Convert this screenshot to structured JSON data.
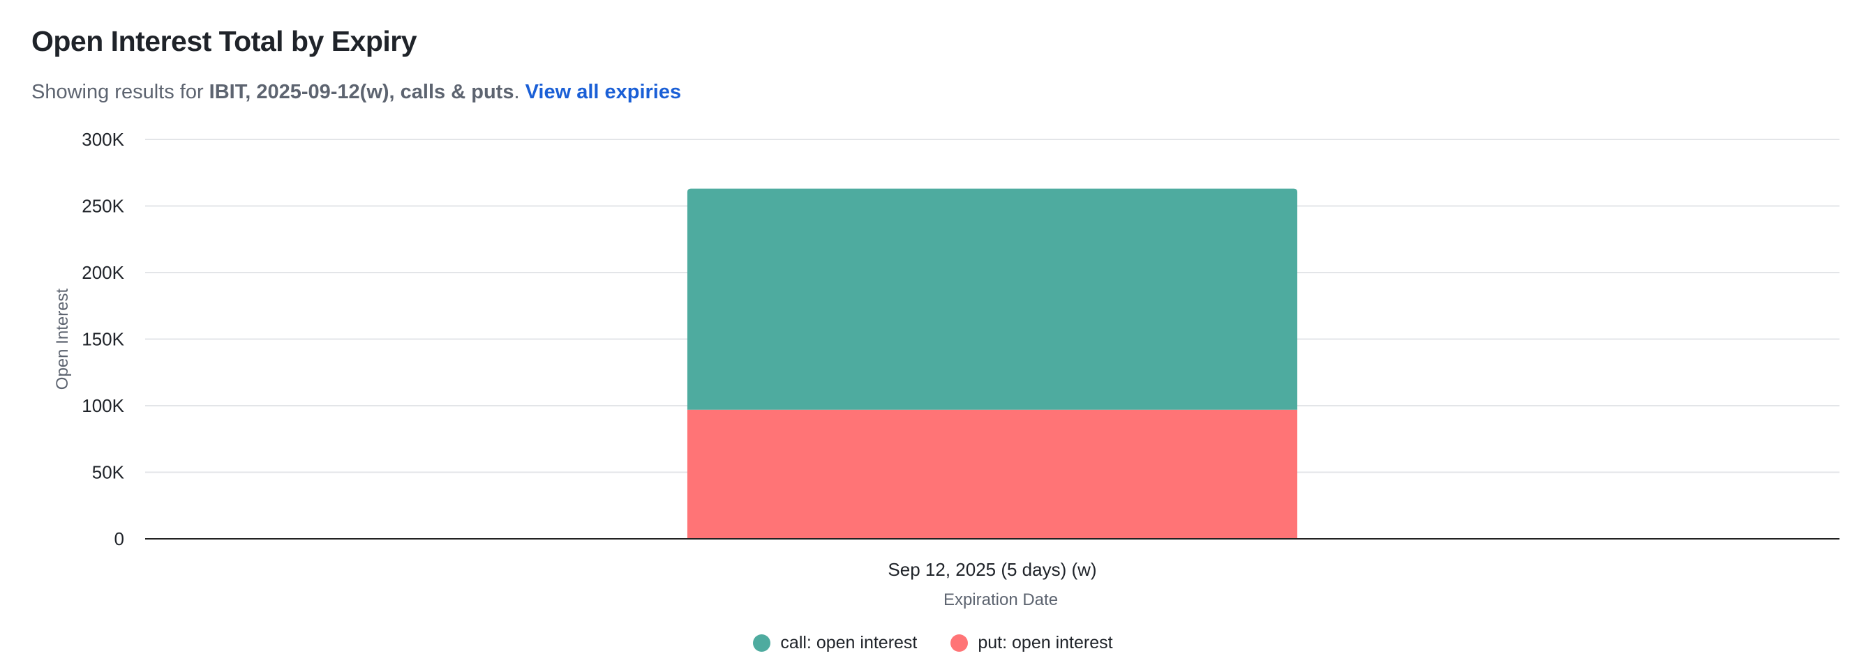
{
  "header": {
    "title": "Open Interest Total by Expiry",
    "subtitle_prefix": "Showing results for ",
    "subtitle_strong": "IBIT, 2025-09-12(w), calls & puts",
    "subtitle_sep": ". ",
    "link_label": "View all expiries"
  },
  "colors": {
    "call": "#4eab9f",
    "put": "#ff7476",
    "grid": "#e3e5e8",
    "axis": "#222222",
    "link": "#1a5fd6"
  },
  "chart_data": {
    "type": "bar",
    "stacked": true,
    "categories": [
      "Sep 12, 2025 (5 days) (w)"
    ],
    "series": [
      {
        "name": "put: open interest",
        "values": [
          97000
        ],
        "color": "#ff7476"
      },
      {
        "name": "call: open interest",
        "values": [
          166000
        ],
        "color": "#4eab9f"
      }
    ],
    "xlabel": "Expiration Date",
    "ylabel": "Open Interest",
    "ylim": [
      0,
      300000
    ],
    "yticks": [
      0,
      50000,
      100000,
      150000,
      200000,
      250000,
      300000
    ],
    "ytick_labels": [
      "0",
      "50K",
      "100K",
      "150K",
      "200K",
      "250K",
      "300K"
    ],
    "grid": true,
    "legend_position": "bottom-center"
  },
  "legend": [
    {
      "label": "call: open interest",
      "color": "#4eab9f"
    },
    {
      "label": "put: open interest",
      "color": "#ff7476"
    }
  ]
}
